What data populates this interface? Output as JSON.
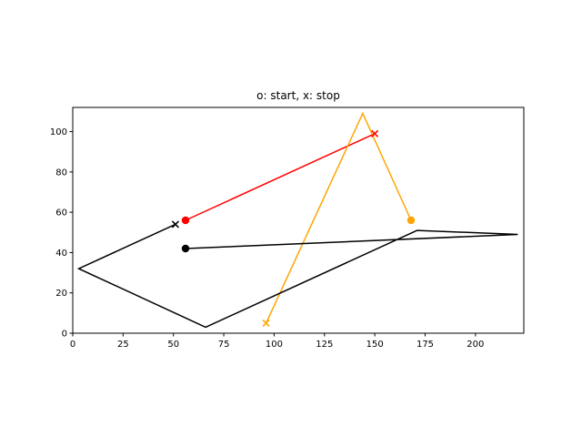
{
  "chart_data": {
    "type": "line",
    "title": "o: start, x: stop",
    "xlabel": "",
    "ylabel": "",
    "xlim": [
      0,
      224
    ],
    "ylim": [
      0,
      112
    ],
    "xticks": [
      0,
      25,
      50,
      75,
      100,
      125,
      150,
      175,
      200
    ],
    "yticks": [
      0,
      20,
      40,
      60,
      80,
      100
    ],
    "grid": false,
    "series": [
      {
        "color": "#ff0000",
        "x": [
          56,
          150
        ],
        "y": [
          56,
          99
        ],
        "start": [
          56,
          56
        ],
        "stop": [
          150,
          99
        ]
      },
      {
        "color": "#ffa500",
        "x": [
          168,
          144,
          96
        ],
        "y": [
          56,
          109,
          5
        ],
        "start": [
          168,
          56
        ],
        "stop": [
          96,
          5
        ]
      },
      {
        "color": "#000000",
        "x": [
          56,
          221,
          171,
          66,
          3,
          51
        ],
        "y": [
          42,
          49,
          51,
          3,
          32,
          54
        ],
        "start": [
          56,
          42
        ],
        "stop": [
          51,
          54
        ]
      }
    ]
  }
}
